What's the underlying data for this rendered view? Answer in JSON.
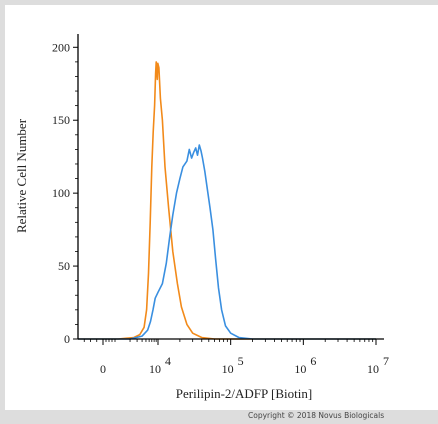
{
  "chart_data": {
    "type": "line",
    "title": "",
    "xlabel": "Perilipin-2/ADFP [Biotin]",
    "ylabel": "Relative Cell Number",
    "x_scale": "log",
    "xlim": [
      -800,
      10000000
    ],
    "ylim": [
      0,
      205
    ],
    "yticks": [
      0,
      50,
      100,
      150,
      200
    ],
    "xtick_labels": [
      {
        "value": 0,
        "base": "0",
        "exp": ""
      },
      {
        "value": 10000,
        "base": "10",
        "exp": "4"
      },
      {
        "value": 100000,
        "base": "10",
        "exp": "5"
      },
      {
        "value": 1000000,
        "base": "10",
        "exp": "6"
      },
      {
        "value": 10000000,
        "base": "10",
        "exp": "7"
      }
    ],
    "grid": false,
    "legend": "none",
    "series": [
      {
        "color": "#f28a1a",
        "points": [
          [
            -800,
            0
          ],
          [
            0,
            0
          ],
          [
            1000,
            0
          ],
          [
            2500,
            1
          ],
          [
            3500,
            3
          ],
          [
            4500,
            8
          ],
          [
            5200,
            20
          ],
          [
            5800,
            45
          ],
          [
            6400,
            80
          ],
          [
            7000,
            118
          ],
          [
            7600,
            142
          ],
          [
            8200,
            160
          ],
          [
            8700,
            182
          ],
          [
            9000,
            190
          ],
          [
            9300,
            184
          ],
          [
            9600,
            178
          ],
          [
            9900,
            189
          ],
          [
            10300,
            186
          ],
          [
            10800,
            165
          ],
          [
            11500,
            150
          ],
          [
            12500,
            118
          ],
          [
            14000,
            90
          ],
          [
            16000,
            60
          ],
          [
            18500,
            38
          ],
          [
            21000,
            22
          ],
          [
            25000,
            10
          ],
          [
            30000,
            4
          ],
          [
            40000,
            1
          ],
          [
            60000,
            0
          ],
          [
            10000000,
            0
          ]
        ]
      },
      {
        "color": "#3a8fe0",
        "points": [
          [
            -800,
            0
          ],
          [
            0,
            0
          ],
          [
            2000,
            0
          ],
          [
            4000,
            2
          ],
          [
            5500,
            6
          ],
          [
            6500,
            12
          ],
          [
            7500,
            20
          ],
          [
            8500,
            28
          ],
          [
            10000,
            32
          ],
          [
            11500,
            38
          ],
          [
            13000,
            52
          ],
          [
            14500,
            70
          ],
          [
            16000,
            85
          ],
          [
            18000,
            100
          ],
          [
            20000,
            110
          ],
          [
            22000,
            118
          ],
          [
            25000,
            122
          ],
          [
            27000,
            130
          ],
          [
            29000,
            124
          ],
          [
            31000,
            128
          ],
          [
            33000,
            131
          ],
          [
            35000,
            126
          ],
          [
            37000,
            133
          ],
          [
            39000,
            129
          ],
          [
            41000,
            124
          ],
          [
            44000,
            115
          ],
          [
            48000,
            102
          ],
          [
            52000,
            90
          ],
          [
            57000,
            75
          ],
          [
            62000,
            55
          ],
          [
            68000,
            35
          ],
          [
            75000,
            20
          ],
          [
            85000,
            9
          ],
          [
            100000,
            4
          ],
          [
            130000,
            1
          ],
          [
            200000,
            0
          ],
          [
            10000000,
            0
          ]
        ]
      }
    ]
  },
  "footer": {
    "copyright": "Copyright © 2018 Novus Biologicals"
  }
}
